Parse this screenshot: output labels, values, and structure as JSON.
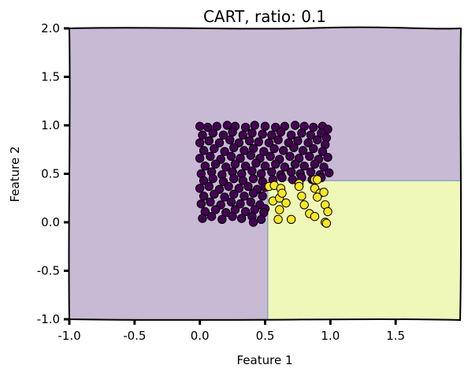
{
  "chart_data": {
    "type": "scatter",
    "title": "CART, ratio: 0.1",
    "xlabel": "Feature 1",
    "ylabel": "Feature 2",
    "xlim": [
      -1.0,
      2.0
    ],
    "ylim": [
      -1.0,
      2.0
    ],
    "x_ticks": [
      "-1.0",
      "-0.5",
      "0.0",
      "0.5",
      "1.0",
      "1.5"
    ],
    "y_ticks": [
      "2.0",
      "1.5",
      "1.0",
      "0.5",
      "0.0",
      "-0.5",
      "-1.0"
    ],
    "grid": false,
    "decision_regions": [
      {
        "class": 0,
        "color": "#c8b9d4",
        "description": "rest of plane"
      },
      {
        "class": 1,
        "color": "#eff7b9",
        "x_range": [
          0.52,
          2.0
        ],
        "y_range": [
          -1.0,
          0.43
        ]
      }
    ],
    "colors": {
      "class_0": "#440154",
      "class_1": "#fde725",
      "edge": "#000000",
      "boundary": "#7a9cc4"
    },
    "series": [
      {
        "values": [
          [
            0.0,
            0.99
          ],
          [
            0.06,
            0.98
          ],
          [
            0.13,
            0.99
          ],
          [
            0.21,
            1.0
          ],
          [
            0.27,
            0.99
          ],
          [
            0.35,
            0.98
          ],
          [
            0.42,
            1.0
          ],
          [
            0.5,
            0.99
          ],
          [
            0.58,
            0.98
          ],
          [
            0.65,
            0.99
          ],
          [
            0.73,
            1.0
          ],
          [
            0.8,
            0.99
          ],
          [
            0.87,
            0.98
          ],
          [
            0.94,
            0.99
          ],
          [
            0.98,
            0.96
          ],
          [
            0.02,
            0.9
          ],
          [
            0.1,
            0.92
          ],
          [
            0.18,
            0.9
          ],
          [
            0.25,
            0.93
          ],
          [
            0.33,
            0.9
          ],
          [
            0.4,
            0.92
          ],
          [
            0.48,
            0.91
          ],
          [
            0.55,
            0.9
          ],
          [
            0.62,
            0.93
          ],
          [
            0.7,
            0.9
          ],
          [
            0.78,
            0.92
          ],
          [
            0.85,
            0.9
          ],
          [
            0.93,
            0.92
          ],
          [
            0.97,
            0.87
          ],
          [
            0.0,
            0.82
          ],
          [
            0.07,
            0.84
          ],
          [
            0.15,
            0.82
          ],
          [
            0.23,
            0.85
          ],
          [
            0.3,
            0.82
          ],
          [
            0.38,
            0.84
          ],
          [
            0.45,
            0.83
          ],
          [
            0.53,
            0.82
          ],
          [
            0.6,
            0.85
          ],
          [
            0.68,
            0.82
          ],
          [
            0.75,
            0.84
          ],
          [
            0.83,
            0.82
          ],
          [
            0.9,
            0.85
          ],
          [
            0.96,
            0.8
          ],
          [
            0.03,
            0.74
          ],
          [
            0.11,
            0.76
          ],
          [
            0.19,
            0.73
          ],
          [
            0.26,
            0.77
          ],
          [
            0.34,
            0.74
          ],
          [
            0.41,
            0.76
          ],
          [
            0.49,
            0.73
          ],
          [
            0.57,
            0.76
          ],
          [
            0.64,
            0.74
          ],
          [
            0.72,
            0.77
          ],
          [
            0.79,
            0.74
          ],
          [
            0.87,
            0.76
          ],
          [
            0.94,
            0.73
          ],
          [
            0.0,
            0.66
          ],
          [
            0.08,
            0.68
          ],
          [
            0.16,
            0.65
          ],
          [
            0.24,
            0.68
          ],
          [
            0.31,
            0.66
          ],
          [
            0.39,
            0.69
          ],
          [
            0.46,
            0.66
          ],
          [
            0.54,
            0.68
          ],
          [
            0.61,
            0.65
          ],
          [
            0.69,
            0.68
          ],
          [
            0.76,
            0.66
          ],
          [
            0.84,
            0.68
          ],
          [
            0.91,
            0.65
          ],
          [
            0.98,
            0.67
          ],
          [
            0.04,
            0.58
          ],
          [
            0.12,
            0.6
          ],
          [
            0.2,
            0.57
          ],
          [
            0.27,
            0.6
          ],
          [
            0.35,
            0.58
          ],
          [
            0.43,
            0.61
          ],
          [
            0.5,
            0.58
          ],
          [
            0.58,
            0.6
          ],
          [
            0.65,
            0.57
          ],
          [
            0.73,
            0.6
          ],
          [
            0.8,
            0.58
          ],
          [
            0.88,
            0.6
          ],
          [
            0.95,
            0.57
          ],
          [
            0.01,
            0.5
          ],
          [
            0.09,
            0.52
          ],
          [
            0.17,
            0.49
          ],
          [
            0.25,
            0.52
          ],
          [
            0.32,
            0.5
          ],
          [
            0.4,
            0.53
          ],
          [
            0.47,
            0.5
          ],
          [
            0.55,
            0.52
          ],
          [
            0.62,
            0.49
          ],
          [
            0.7,
            0.52
          ],
          [
            0.77,
            0.5
          ],
          [
            0.85,
            0.52
          ],
          [
            0.92,
            0.49
          ],
          [
            0.99,
            0.51
          ],
          [
            0.03,
            0.43
          ],
          [
            0.1,
            0.45
          ],
          [
            0.18,
            0.42
          ],
          [
            0.26,
            0.45
          ],
          [
            0.33,
            0.43
          ],
          [
            0.41,
            0.45
          ],
          [
            0.48,
            0.42
          ],
          [
            0.56,
            0.44
          ],
          [
            0.63,
            0.46
          ],
          [
            0.71,
            0.44
          ],
          [
            0.78,
            0.46
          ],
          [
            0.86,
            0.44
          ],
          [
            0.93,
            0.46
          ],
          [
            0.0,
            0.35
          ],
          [
            0.07,
            0.37
          ],
          [
            0.15,
            0.34
          ],
          [
            0.22,
            0.37
          ],
          [
            0.3,
            0.35
          ],
          [
            0.37,
            0.37
          ],
          [
            0.44,
            0.34
          ],
          [
            0.5,
            0.36
          ],
          [
            0.03,
            0.27
          ],
          [
            0.11,
            0.29
          ],
          [
            0.19,
            0.26
          ],
          [
            0.26,
            0.29
          ],
          [
            0.34,
            0.27
          ],
          [
            0.41,
            0.3
          ],
          [
            0.48,
            0.27
          ],
          [
            0.01,
            0.19
          ],
          [
            0.08,
            0.21
          ],
          [
            0.16,
            0.18
          ],
          [
            0.24,
            0.21
          ],
          [
            0.31,
            0.19
          ],
          [
            0.39,
            0.21
          ],
          [
            0.46,
            0.18
          ],
          [
            0.5,
            0.14
          ],
          [
            0.04,
            0.11
          ],
          [
            0.12,
            0.13
          ],
          [
            0.2,
            0.1
          ],
          [
            0.27,
            0.13
          ],
          [
            0.35,
            0.11
          ],
          [
            0.42,
            0.13
          ],
          [
            0.49,
            0.1
          ],
          [
            0.02,
            0.04
          ],
          [
            0.09,
            0.06
          ],
          [
            0.17,
            0.03
          ],
          [
            0.25,
            0.06
          ],
          [
            0.32,
            0.04
          ],
          [
            0.4,
            0.06
          ],
          [
            0.47,
            0.03
          ],
          [
            0.41,
            0.0
          ]
        ]
      },
      {
        "values": [
          [
            0.53,
            0.37
          ],
          [
            0.57,
            0.38
          ],
          [
            0.62,
            0.35
          ],
          [
            0.56,
            0.22
          ],
          [
            0.61,
            0.25
          ],
          [
            0.63,
            0.3
          ],
          [
            0.66,
            0.2
          ],
          [
            0.61,
            0.13
          ],
          [
            0.6,
            0.03
          ],
          [
            0.7,
            0.03
          ],
          [
            0.76,
            0.4
          ],
          [
            0.76,
            0.37
          ],
          [
            0.78,
            0.27
          ],
          [
            0.8,
            0.18
          ],
          [
            0.84,
            0.09
          ],
          [
            0.88,
            0.06
          ],
          [
            0.88,
            0.44
          ],
          [
            0.9,
            0.44
          ],
          [
            0.88,
            0.35
          ],
          [
            0.92,
            0.3
          ],
          [
            0.95,
            0.31
          ],
          [
            0.9,
            0.26
          ],
          [
            0.96,
            0.18
          ],
          [
            0.98,
            0.11
          ],
          [
            0.96,
            0.0
          ],
          [
            0.97,
            -0.01
          ]
        ]
      }
    ]
  }
}
